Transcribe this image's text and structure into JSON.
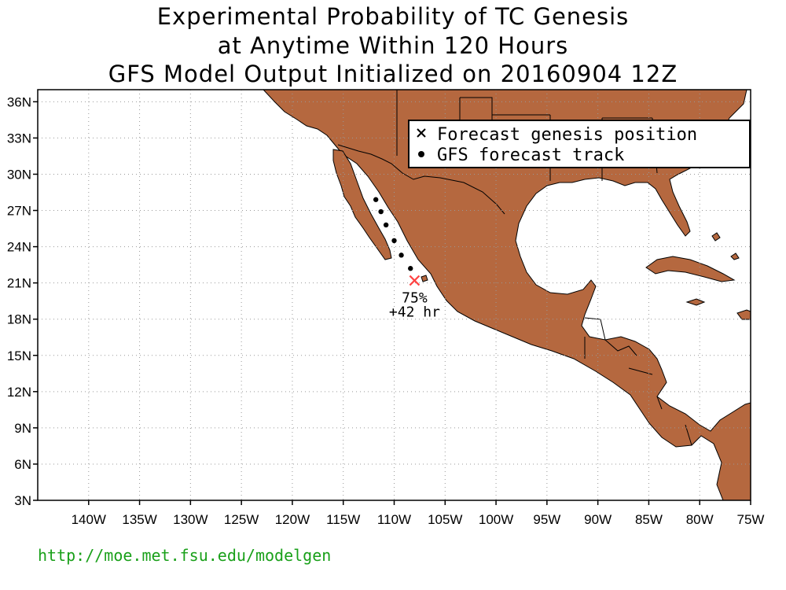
{
  "title": {
    "line1": "Experimental Probability of TC Genesis",
    "line2": "at Anytime Within 120 Hours",
    "line3": "GFS Model Output Initialized on 20160904 12Z"
  },
  "map": {
    "lon_range": [
      -145,
      -75
    ],
    "lat_range": [
      3,
      37
    ],
    "lon_ticks": [
      {
        "value": -140,
        "label": "140W"
      },
      {
        "value": -135,
        "label": "135W"
      },
      {
        "value": -130,
        "label": "130W"
      },
      {
        "value": -125,
        "label": "125W"
      },
      {
        "value": -120,
        "label": "120W"
      },
      {
        "value": -115,
        "label": "115W"
      },
      {
        "value": -110,
        "label": "110W"
      },
      {
        "value": -105,
        "label": "105W"
      },
      {
        "value": -100,
        "label": "100W"
      },
      {
        "value": -95,
        "label": "95W"
      },
      {
        "value": -90,
        "label": "90W"
      },
      {
        "value": -85,
        "label": "85W"
      },
      {
        "value": -80,
        "label": "80W"
      },
      {
        "value": -75,
        "label": "75W"
      }
    ],
    "lat_ticks": [
      {
        "value": 3,
        "label": "3N"
      },
      {
        "value": 6,
        "label": "6N"
      },
      {
        "value": 9,
        "label": "9N"
      },
      {
        "value": 12,
        "label": "12N"
      },
      {
        "value": 15,
        "label": "15N"
      },
      {
        "value": 18,
        "label": "18N"
      },
      {
        "value": 21,
        "label": "21N"
      },
      {
        "value": 24,
        "label": "24N"
      },
      {
        "value": 27,
        "label": "27N"
      },
      {
        "value": 30,
        "label": "30N"
      },
      {
        "value": 33,
        "label": "33N"
      },
      {
        "value": 36,
        "label": "36N"
      }
    ],
    "land_color": "#b5683f",
    "grid": true
  },
  "legend": {
    "genesis_label": "Forecast genesis position",
    "track_label": "GFS forecast track",
    "genesis_marker": "x-mark-icon",
    "track_marker": "dot-icon"
  },
  "genesis": {
    "lon": -108,
    "lat": 21.2,
    "probability": "75%",
    "lead_time": "+42 hr",
    "color": "#ff4444"
  },
  "track": [
    {
      "lon": -108.4,
      "lat": 22.2
    },
    {
      "lon": -109.3,
      "lat": 23.3
    },
    {
      "lon": -110.0,
      "lat": 24.5
    },
    {
      "lon": -110.8,
      "lat": 25.8
    },
    {
      "lon": -111.3,
      "lat": 26.9
    },
    {
      "lon": -111.8,
      "lat": 27.9
    }
  ],
  "footer": {
    "url": "http://moe.met.fsu.edu/modelgen"
  }
}
